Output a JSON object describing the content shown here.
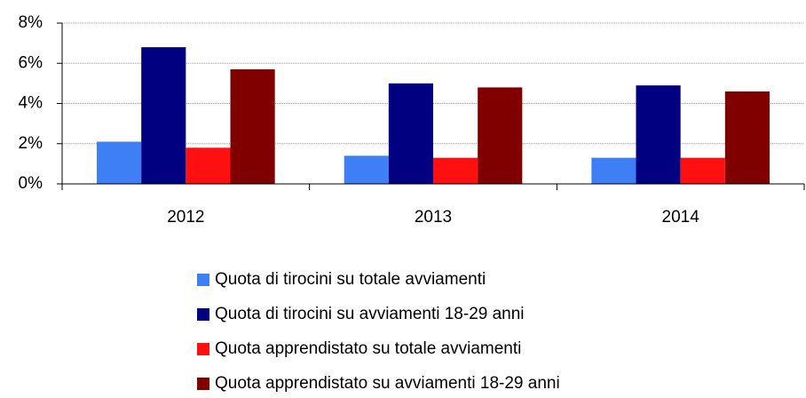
{
  "chart_data": {
    "type": "bar",
    "categories": [
      "2012",
      "2013",
      "2014"
    ],
    "series": [
      {
        "name": "Quota di tirocini su totale avviamenti",
        "color": "#3e7ff5",
        "values": [
          2.1,
          1.4,
          1.3
        ]
      },
      {
        "name": "Quota di tirocini su avviamenti 18-29 anni",
        "color": "#000080",
        "values": [
          6.8,
          5.0,
          4.9
        ]
      },
      {
        "name": "Quota apprendistato su totale avviamenti",
        "color": "#ff1010",
        "values": [
          1.8,
          1.3,
          1.3
        ]
      },
      {
        "name": "Quota apprendistato su avviamenti 18-29 anni",
        "color": "#800000",
        "values": [
          5.7,
          4.8,
          4.6
        ]
      }
    ],
    "ylim": [
      0,
      8
    ],
    "yticks": [
      {
        "value": 0,
        "label": "0%"
      },
      {
        "value": 2,
        "label": "2%"
      },
      {
        "value": 4,
        "label": "4%"
      },
      {
        "value": 6,
        "label": "6%"
      },
      {
        "value": 8,
        "label": "8%"
      }
    ],
    "grid": true,
    "legend": "bottom"
  }
}
